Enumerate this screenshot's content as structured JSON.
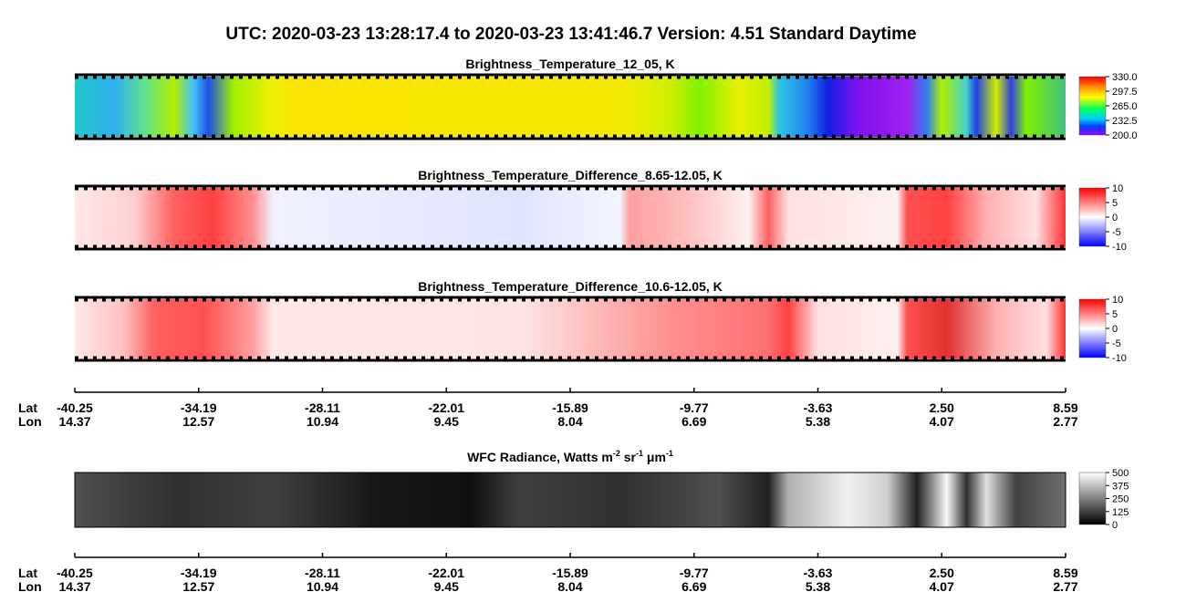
{
  "title": "UTC:  2020-03-23   13:28:17.4  to  2020-03-23   13:41:46.7    Version: 4.51  Standard Daytime",
  "panels": [
    {
      "title": "Brightness_Temperature_12_05, K",
      "colorbar_ticks": [
        {
          "value": 330,
          "label": "330.0"
        },
        {
          "value": 297.5,
          "label": "297.5"
        },
        {
          "value": 265,
          "label": "265.0"
        },
        {
          "value": 232.5,
          "label": "232.5"
        },
        {
          "value": 200,
          "label": "200.0"
        }
      ]
    },
    {
      "title": "Brightness_Temperature_Difference_8.65-12.05, K",
      "colorbar_ticks": [
        10,
        5,
        0,
        -5,
        -10
      ]
    },
    {
      "title": "Brightness_Temperature_Difference_10.6-12.05, K",
      "colorbar_ticks": [
        10,
        5,
        0,
        -5,
        -10
      ]
    },
    {
      "title_parts": [
        "WFC Radiance, Watts m",
        "-2",
        " sr",
        "-1",
        " μm",
        "-1"
      ],
      "colorbar_ticks": [
        500,
        375,
        250,
        125,
        0
      ]
    }
  ],
  "axis": {
    "lat_label": "Lat",
    "lon_label": "Lon",
    "lat": [
      -40.25,
      -34.19,
      -28.11,
      -22.01,
      -15.89,
      -9.77,
      -3.63,
      {
        "value": 2.5,
        "label": "2.50"
      },
      8.59
    ],
    "lon": [
      14.37,
      12.57,
      10.94,
      9.45,
      8.04,
      6.69,
      5.38,
      4.07,
      2.77
    ]
  }
}
